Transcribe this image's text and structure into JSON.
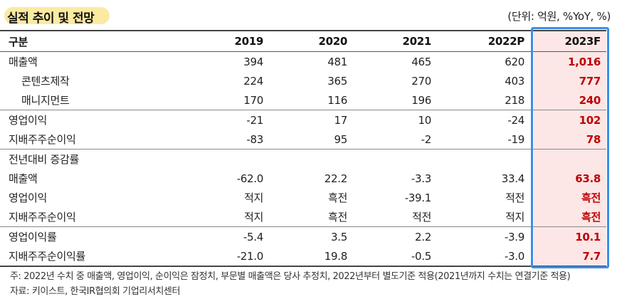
{
  "title": "실적 추이 및 전망",
  "unit": "(단위: 억원, %YoY, %)",
  "table": {
    "columns": [
      "구분",
      "2019",
      "2020",
      "2021",
      "2022P",
      "2023F"
    ],
    "rows": [
      {
        "label": "매출액",
        "values": [
          "394",
          "481",
          "465",
          "620",
          "1,016"
        ]
      },
      {
        "label": "콘텐츠제작",
        "values": [
          "224",
          "365",
          "270",
          "403",
          "777"
        ]
      },
      {
        "label": "매니지먼트",
        "values": [
          "170",
          "116",
          "196",
          "218",
          "240"
        ]
      },
      {
        "label": "영업이익",
        "values": [
          "-21",
          "17",
          "10",
          "-24",
          "102"
        ]
      },
      {
        "label": "지배주주순이익",
        "values": [
          "-83",
          "95",
          "-2",
          "-19",
          "78"
        ]
      },
      {
        "label": "전년대비 증감률",
        "values": [
          "",
          "",
          "",
          "",
          ""
        ]
      },
      {
        "label": "매출액",
        "values": [
          "-62.0",
          "22.2",
          "-3.3",
          "33.4",
          "63.8"
        ]
      },
      {
        "label": "영업이익",
        "values": [
          "적지",
          "흑전",
          "-39.1",
          "적전",
          "흑전"
        ]
      },
      {
        "label": "지배주주순이익",
        "values": [
          "적지",
          "흑전",
          "적전",
          "적지",
          "흑전"
        ]
      },
      {
        "label": "영업이익률",
        "values": [
          "-5.4",
          "3.5",
          "2.2",
          "-3.9",
          "10.1"
        ]
      },
      {
        "label": "지배주주순이익률",
        "values": [
          "-21.0",
          "19.8",
          "-0.5",
          "-3.0",
          "7.7"
        ]
      }
    ]
  },
  "notes": [
    "주: 2022년 수치 중 매출액, 영업이익, 순이익은 잠정치, 부문별 매출액은 당사 추정치, 2022년부터 별도기준 적용(2021년까지 수치는 연결기준 적용)",
    "자료: 키이스트, 한국IR협의회 기업리서치센터"
  ],
  "colors": {
    "highlight_text": "#c00000",
    "highlight_bg": "#fde6e6",
    "box": "#3b8ee8",
    "title_bg": "#fbeaa2"
  }
}
